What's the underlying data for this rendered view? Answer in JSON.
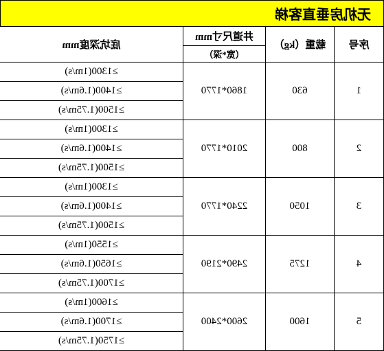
{
  "title": "无机房垂直客梯",
  "headers": {
    "seq": "序号",
    "load": "载重（kg）",
    "shaft_main": "井道尺寸mm",
    "shaft_sub": "（宽*深）",
    "pit": "底坑深度mm"
  },
  "rows": [
    {
      "seq": "1",
      "load": "630",
      "shaft": "1860*1770",
      "pits": [
        "≥1300(1m/s)",
        "≥1400(1.6m/s)",
        "≥1500(1.75m/s)"
      ]
    },
    {
      "seq": "2",
      "load": "800",
      "shaft": "2010*1770",
      "pits": [
        "≥1300(1m/s)",
        "≥1400(1.6m/s)",
        "≥1500(1.75m/s)"
      ]
    },
    {
      "seq": "3",
      "load": "1050",
      "shaft": "2240*1770",
      "pits": [
        "≥1300(1m/s)",
        "≥1400(1.6m/s)",
        "≥1500(1.75m/s)"
      ]
    },
    {
      "seq": "4",
      "load": "1275",
      "shaft": "2490*2190",
      "pits": [
        "≥1550(1m/s)",
        "≥1650(1.6m/s)",
        "≥1700(1.75m/s)"
      ]
    },
    {
      "seq": "5",
      "load": "1600",
      "shaft": "2600*2400",
      "pits": [
        "≥1600(1m/s)",
        "≥1700(1.6m/s)",
        "≥1750(1.75m/s)"
      ]
    }
  ],
  "colors": {
    "title_bg": "#ffff00",
    "border": "#000000",
    "bg": "#ffffff"
  }
}
